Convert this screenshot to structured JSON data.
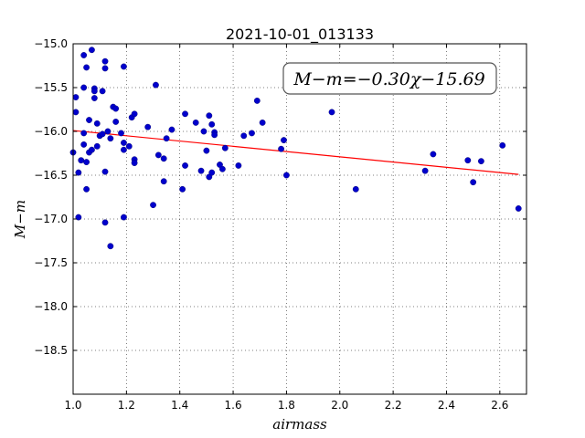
{
  "chart_data": {
    "type": "scatter",
    "title": "2021-10-01_013133",
    "xlabel": "airmass",
    "ylabel": "M−m",
    "xlim": [
      1.0,
      2.7
    ],
    "ylim": [
      -15.0,
      -19.0
    ],
    "y_inverted": true,
    "grid": true,
    "x_ticks": [
      1.0,
      1.2,
      1.4,
      1.6,
      1.8,
      2.0,
      2.2,
      2.4,
      2.6
    ],
    "x_tick_labels": [
      "1.0",
      "1.2",
      "1.4",
      "1.6",
      "1.8",
      "2.0",
      "2.2",
      "2.4",
      "2.6"
    ],
    "y_ticks": [
      -15.0,
      -15.5,
      -16.0,
      -16.5,
      -17.0,
      -17.5,
      -18.0,
      -18.5
    ],
    "y_tick_labels": [
      "−15.0",
      "−15.5",
      "−16.0",
      "−16.5",
      "−17.0",
      "−17.5",
      "−18.0",
      "−18.5"
    ],
    "annotation": "M−m=−0.30χ−15.69",
    "point_color": "#0000cc",
    "fit_color": "#ff0000",
    "fit_line": {
      "slope": -0.3,
      "intercept": -15.69,
      "x_range": [
        1.0,
        2.67
      ]
    },
    "series": [
      {
        "points": [
          [
            1.0,
            -16.24
          ],
          [
            1.01,
            -15.61
          ],
          [
            1.01,
            -15.78
          ],
          [
            1.02,
            -16.47
          ],
          [
            1.02,
            -16.98
          ],
          [
            1.03,
            -16.33
          ],
          [
            1.04,
            -16.02
          ],
          [
            1.04,
            -15.13
          ],
          [
            1.04,
            -15.5
          ],
          [
            1.04,
            -16.15
          ],
          [
            1.05,
            -16.35
          ],
          [
            1.05,
            -15.27
          ],
          [
            1.05,
            -16.66
          ],
          [
            1.06,
            -15.87
          ],
          [
            1.06,
            -16.24
          ],
          [
            1.07,
            -15.07
          ],
          [
            1.07,
            -16.21
          ],
          [
            1.08,
            -15.51
          ],
          [
            1.08,
            -15.54
          ],
          [
            1.08,
            -15.62
          ],
          [
            1.09,
            -16.17
          ],
          [
            1.09,
            -15.91
          ],
          [
            1.1,
            -16.05
          ],
          [
            1.11,
            -15.54
          ],
          [
            1.11,
            -16.03
          ],
          [
            1.12,
            -15.2
          ],
          [
            1.12,
            -15.28
          ],
          [
            1.12,
            -16.46
          ],
          [
            1.12,
            -17.04
          ],
          [
            1.13,
            -16.0
          ],
          [
            1.14,
            -16.08
          ],
          [
            1.14,
            -17.31
          ],
          [
            1.15,
            -15.72
          ],
          [
            1.16,
            -15.74
          ],
          [
            1.16,
            -15.89
          ],
          [
            1.18,
            -16.02
          ],
          [
            1.19,
            -15.26
          ],
          [
            1.19,
            -16.13
          ],
          [
            1.19,
            -16.21
          ],
          [
            1.19,
            -16.98
          ],
          [
            1.21,
            -16.17
          ],
          [
            1.22,
            -15.84
          ],
          [
            1.23,
            -15.8
          ],
          [
            1.23,
            -16.32
          ],
          [
            1.23,
            -16.36
          ],
          [
            1.28,
            -15.95
          ],
          [
            1.3,
            -16.84
          ],
          [
            1.31,
            -15.47
          ],
          [
            1.32,
            -16.27
          ],
          [
            1.34,
            -16.31
          ],
          [
            1.34,
            -16.57
          ],
          [
            1.35,
            -16.08
          ],
          [
            1.37,
            -15.98
          ],
          [
            1.41,
            -16.66
          ],
          [
            1.42,
            -15.8
          ],
          [
            1.42,
            -16.39
          ],
          [
            1.46,
            -15.9
          ],
          [
            1.48,
            -16.45
          ],
          [
            1.49,
            -16.0
          ],
          [
            1.5,
            -16.22
          ],
          [
            1.51,
            -15.82
          ],
          [
            1.51,
            -16.52
          ],
          [
            1.52,
            -15.92
          ],
          [
            1.52,
            -16.47
          ],
          [
            1.53,
            -16.01
          ],
          [
            1.53,
            -16.04
          ],
          [
            1.55,
            -16.38
          ],
          [
            1.56,
            -16.43
          ],
          [
            1.57,
            -16.19
          ],
          [
            1.62,
            -16.39
          ],
          [
            1.64,
            -16.05
          ],
          [
            1.67,
            -16.02
          ],
          [
            1.69,
            -15.65
          ],
          [
            1.71,
            -15.9
          ],
          [
            1.78,
            -16.2
          ],
          [
            1.79,
            -16.1
          ],
          [
            1.8,
            -16.5
          ],
          [
            1.97,
            -15.78
          ],
          [
            2.06,
            -16.66
          ],
          [
            2.32,
            -16.45
          ],
          [
            2.35,
            -16.26
          ],
          [
            2.48,
            -16.33
          ],
          [
            2.5,
            -16.58
          ],
          [
            2.53,
            -16.34
          ],
          [
            2.61,
            -16.16
          ],
          [
            2.67,
            -16.88
          ]
        ]
      }
    ]
  }
}
